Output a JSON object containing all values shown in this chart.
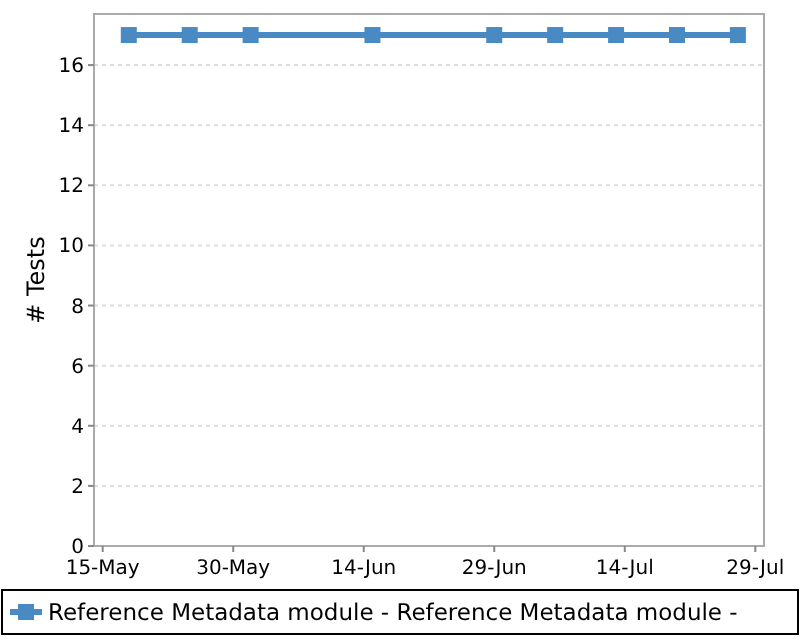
{
  "chart_data": {
    "type": "line",
    "ylabel": "# Tests",
    "x": [
      "--05-18",
      "--05-25",
      "--06-01",
      "--06-15",
      "--06-29",
      "--07-06",
      "--07-13",
      "--07-20",
      "--07-27"
    ],
    "series": [
      {
        "name": "Reference Metadata module - Reference Metadata module -",
        "color": "#4a8ac4",
        "values": [
          17,
          17,
          17,
          17,
          17,
          17,
          17,
          17,
          17
        ]
      }
    ],
    "xlim": [
      "--05-14",
      "--07-30"
    ],
    "xticks": [
      {
        "value": "--05-15",
        "label": "15-May"
      },
      {
        "value": "--05-30",
        "label": "30-May"
      },
      {
        "value": "--06-14",
        "label": "14-Jun"
      },
      {
        "value": "--06-29",
        "label": "29-Jun"
      },
      {
        "value": "--07-14",
        "label": "14-Jul"
      },
      {
        "value": "--07-29",
        "label": "29-Jul"
      }
    ],
    "ylim": [
      0,
      17.7
    ],
    "yticks": [
      0,
      2,
      4,
      6,
      8,
      10,
      12,
      14,
      16
    ],
    "grid": "y",
    "legend": "bottom",
    "marker": "square",
    "line_style": "solid"
  }
}
